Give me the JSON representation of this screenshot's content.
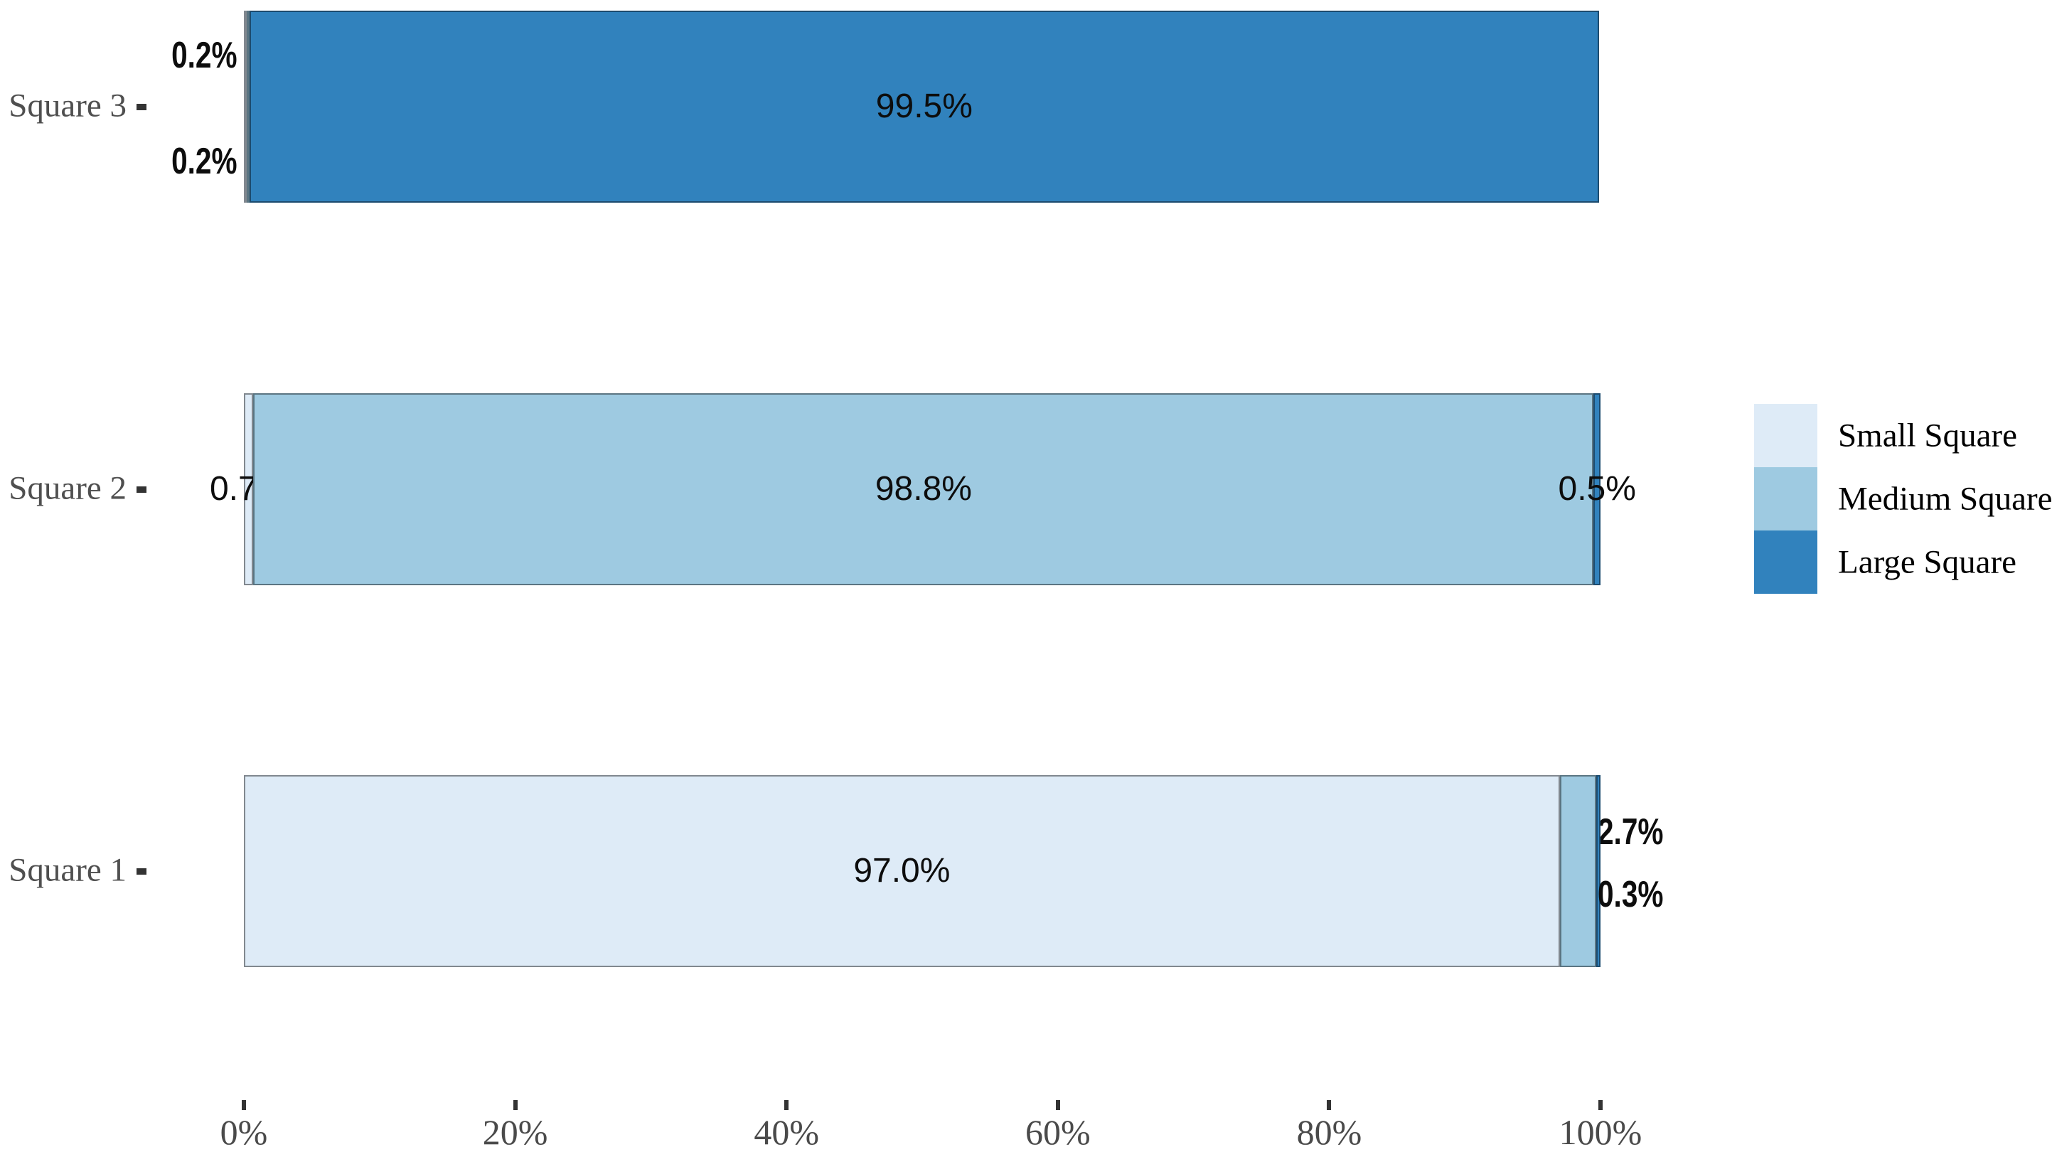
{
  "figure": {
    "background": "#ffffff",
    "title": ""
  },
  "chart_data": {
    "type": "bar",
    "orientation": "horizontal",
    "stacked": true,
    "grid": false,
    "title": "",
    "xlabel": "",
    "ylabel": "",
    "categories": [
      "Square 3",
      "Square 2",
      "Square 1"
    ],
    "series": [
      {
        "name": "Small Square",
        "color": "#DEEBF7",
        "values": [
          0.2,
          0.7,
          97.0
        ],
        "data_labels": [
          "0.2%",
          "0.7%",
          "97.0%"
        ],
        "label_placement": [
          "outside-left",
          "center-on-segment",
          "center-on-segment"
        ],
        "label_dy": [
          -72,
          0,
          0
        ]
      },
      {
        "name": "Medium Square",
        "color": "#9ECAE1",
        "values": [
          0.2,
          98.8,
          2.7
        ],
        "data_labels": [
          "0.2%",
          "98.8%",
          "2.7%"
        ],
        "label_placement": [
          "outside-left",
          "center-on-segment",
          "outside-right"
        ],
        "label_dy": [
          77,
          0,
          -55
        ]
      },
      {
        "name": "Large Square",
        "color": "#3182BD",
        "values": [
          99.5,
          0.5,
          0.3
        ],
        "data_labels": [
          "99.5%",
          "0.5%",
          "0.3%"
        ],
        "label_placement": [
          "center-on-segment",
          "center-on-segment",
          "outside-right"
        ],
        "label_dy": [
          0,
          0,
          33
        ]
      }
    ],
    "x_axis": {
      "range": [
        0,
        100
      ],
      "tick_values": [
        0,
        20,
        40,
        60,
        80,
        100
      ],
      "tick_labels": [
        "0%",
        "20%",
        "40%",
        "60%",
        "80%",
        "100%"
      ]
    },
    "y_axis": {
      "tick_labels": [
        "Square 3",
        "Square 2",
        "Square 1"
      ]
    },
    "legend": {
      "position": "right",
      "items": [
        {
          "label": "Small Square",
          "color": "#DEEBF7"
        },
        {
          "label": "Medium Square",
          "color": "#9ECAE1"
        },
        {
          "label": "Large Square",
          "color": "#3182BD"
        }
      ]
    },
    "segment_border_color": "rgba(0,0,0,0.42)",
    "axis_text_color": "#4a4a4a",
    "tick_mark_color": "#333333"
  }
}
